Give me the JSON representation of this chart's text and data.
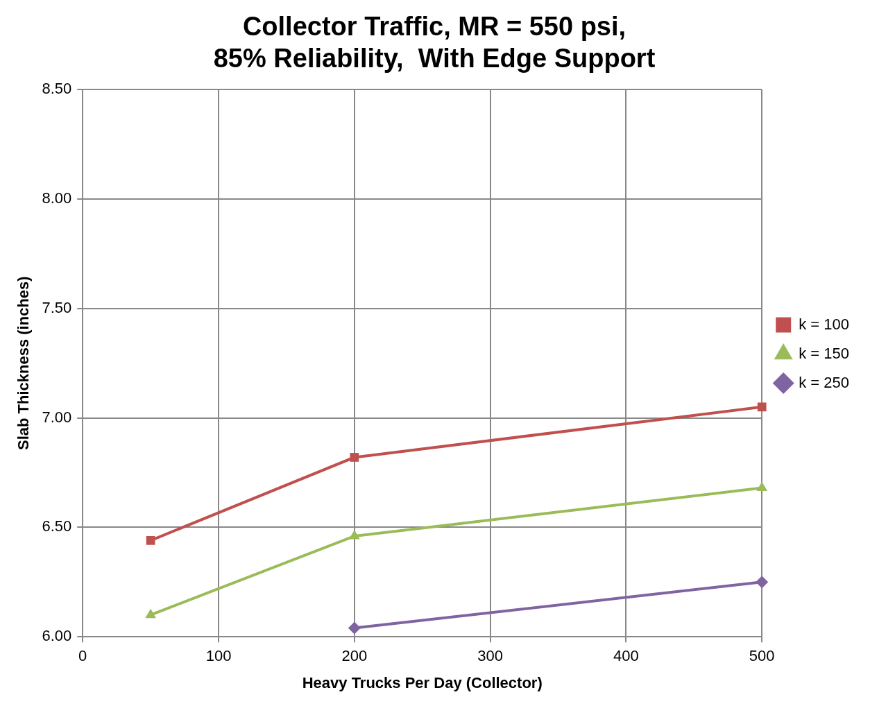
{
  "chart_data": {
    "type": "line",
    "title": "Collector Traffic, MR = 550 psi,\n85% Reliability,  With Edge Support",
    "xlabel": "Heavy Trucks Per Day (Collector)",
    "ylabel": "Slab Thickness (inches)",
    "x": [
      50,
      200,
      500
    ],
    "series": [
      {
        "name": "k = 100",
        "color": "#c0504d",
        "marker": "square",
        "values": [
          6.44,
          6.82,
          7.05
        ]
      },
      {
        "name": "k = 150",
        "color": "#9bbb59",
        "marker": "triangle",
        "values": [
          6.1,
          6.46,
          6.68
        ]
      },
      {
        "name": "k = 250",
        "color": "#8064a2",
        "marker": "diamond",
        "values": [
          null,
          6.04,
          6.25
        ]
      }
    ],
    "xlim": [
      0,
      500
    ],
    "xticks": [
      0,
      100,
      200,
      300,
      400,
      500
    ],
    "ylim": [
      6,
      8.5
    ],
    "yticks": [
      {
        "value": 6,
        "label": "6.00"
      },
      {
        "value": 6.5,
        "label": "6.50"
      },
      {
        "value": 7,
        "label": "7.00"
      },
      {
        "value": 7.5,
        "label": "7.50"
      },
      {
        "value": 8,
        "label": "8.00"
      },
      {
        "value": 8.5,
        "label": "8.50"
      }
    ],
    "grid": true,
    "legend": "right"
  }
}
